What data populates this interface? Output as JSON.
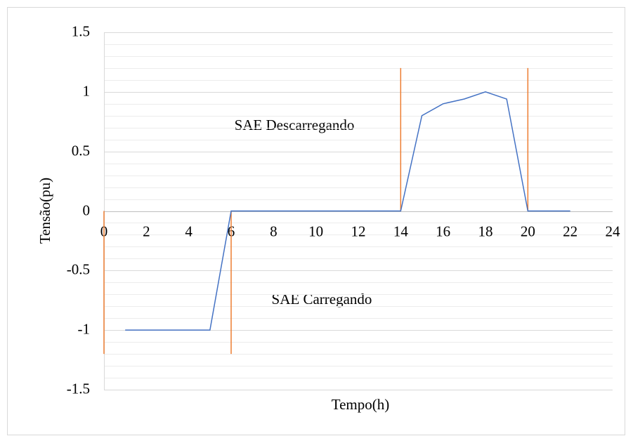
{
  "chart_data": {
    "type": "line",
    "xlabel": "Tempo(h)",
    "ylabel": "Tensão(pu)",
    "annotations": [
      "SAE Descarregando",
      "SAE Carregando"
    ],
    "x": [
      1,
      2,
      3,
      4,
      5,
      6,
      7,
      8,
      9,
      10,
      11,
      12,
      13,
      14,
      15,
      16,
      17,
      18,
      19,
      20,
      21,
      22
    ],
    "series": [
      {
        "color": "#4472c4",
        "values": [
          -1,
          -1,
          -1,
          -1,
          -1,
          0,
          0,
          0,
          0,
          0,
          0,
          0,
          0,
          0,
          0.8,
          0.9,
          0.94,
          1,
          0.94,
          0,
          0,
          0
        ]
      }
    ],
    "vlines": {
      "color": "#ed7d31",
      "x": [
        0,
        6,
        14,
        20
      ],
      "from": [
        0,
        0,
        0,
        0
      ],
      "to": [
        -1.2,
        -1.2,
        1.2,
        1.2
      ]
    },
    "xlim": [
      0,
      24
    ],
    "xticks": [
      0,
      2,
      4,
      6,
      8,
      10,
      12,
      14,
      16,
      18,
      20,
      22,
      24
    ],
    "ylim": [
      -1.5,
      1.5
    ],
    "yticks": [
      -1.5,
      -1,
      -0.5,
      0,
      0.5,
      1,
      1.5
    ],
    "yminorticks": [
      -1.4,
      -1.3,
      -1.2,
      -1.1,
      -0.9,
      -0.8,
      -0.7,
      -0.6,
      -0.4,
      -0.3,
      -0.2,
      -0.1,
      0.1,
      0.2,
      0.3,
      0.4,
      0.6,
      0.7,
      0.8,
      0.9,
      1.1,
      1.2,
      1.3,
      1.4
    ],
    "grid": true
  }
}
